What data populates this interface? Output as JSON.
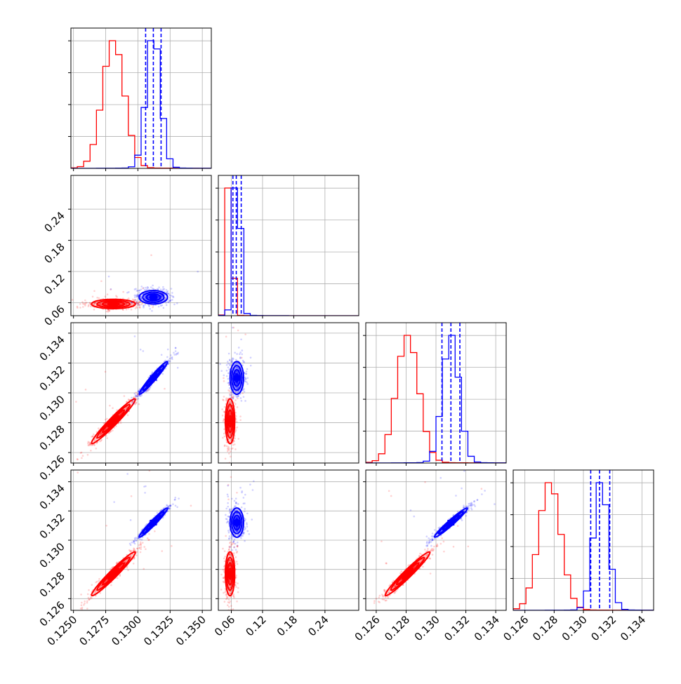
{
  "chart_data": {
    "type": "corner",
    "grid": true,
    "colors": {
      "red": "#ff0000",
      "blue": "#0000ff",
      "grid": "#b0b0b0",
      "axis": "#000000"
    },
    "series": [
      {
        "color": "red"
      },
      {
        "color": "blue"
      }
    ],
    "parameters": [
      {
        "range": [
          0.1248,
          0.1357
        ],
        "ticks": [
          0.125,
          0.1275,
          0.13,
          0.1325,
          0.135
        ],
        "tick_labels": [
          "0.1250",
          "0.1275",
          "0.1300",
          "0.1325",
          "0.1350"
        ],
        "red": {
          "center": 0.1281,
          "sigma": 0.00085
        },
        "blue": {
          "center": 0.1312,
          "sigma": 0.00055
        },
        "quantile_lines": [
          0.1306,
          0.1312,
          0.1318
        ]
      },
      {
        "range": [
          0.035,
          0.305
        ],
        "ticks": [
          0.06,
          0.12,
          0.18,
          0.24
        ],
        "tick_labels": [
          "0.06",
          "0.12",
          "0.18",
          "0.24"
        ],
        "red": {
          "center": 0.0575,
          "sigma": 0.0045
        },
        "blue": {
          "center": 0.0705,
          "sigma": 0.0065
        },
        "quantile_lines": [
          0.063,
          0.0695,
          0.079
        ]
      },
      {
        "range": [
          0.1253,
          0.1347
        ],
        "ticks": [
          0.126,
          0.128,
          0.13,
          0.132,
          0.134
        ],
        "tick_labels": [
          "0.126",
          "0.128",
          "0.130",
          "0.132",
          "0.134"
        ],
        "red": {
          "center": 0.1281,
          "sigma": 0.00075
        },
        "blue": {
          "center": 0.131,
          "sigma": 0.00055
        },
        "quantile_lines": [
          0.1304,
          0.131,
          0.1316
        ]
      },
      {
        "range": [
          0.1252,
          0.1348
        ],
        "ticks": [
          0.126,
          0.128,
          0.13,
          0.132,
          0.134
        ],
        "tick_labels": [
          "0.126",
          "0.128",
          "0.130",
          "0.132",
          "0.134"
        ],
        "red": {
          "center": 0.1277,
          "sigma": 0.00075
        },
        "blue": {
          "center": 0.1312,
          "sigma": 0.0005
        },
        "quantile_lines": [
          0.1305,
          0.1311,
          0.1318
        ]
      }
    ]
  }
}
